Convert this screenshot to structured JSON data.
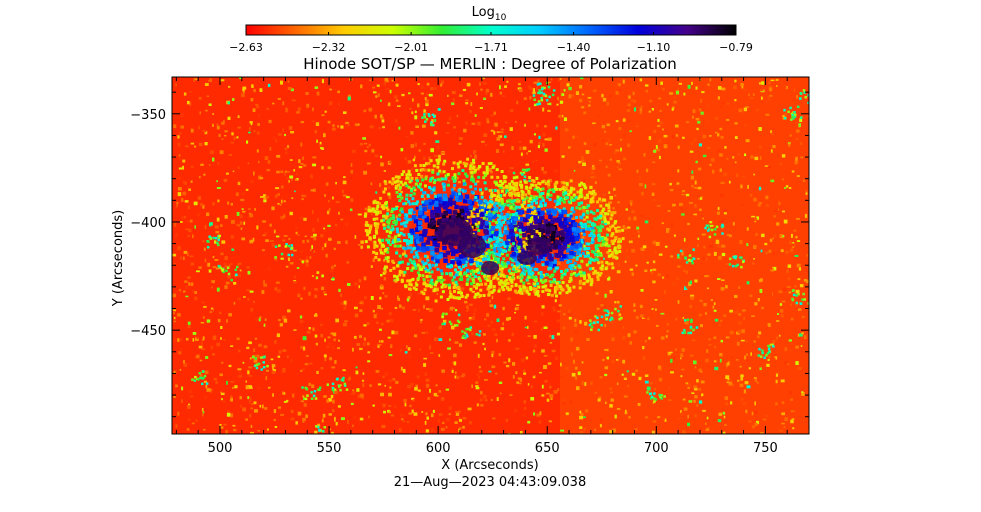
{
  "chart_data": {
    "type": "heatmap",
    "title": "Hinode SOT/SP — MERLIN : Degree of Polarization",
    "xlabel": "X (Arcseconds)",
    "ylabel": "Y (Arcseconds)",
    "timestamp": "21—Aug—2023 04:43:09.038",
    "xlim": [
      478,
      770
    ],
    "ylim": [
      -498,
      -333
    ],
    "xticks": [
      "500",
      "550",
      "600",
      "650",
      "700",
      "750"
    ],
    "yticks": [
      "−350",
      "−400",
      "−450"
    ],
    "xtick_values": [
      500,
      550,
      600,
      650,
      700,
      750
    ],
    "ytick_values": [
      -350,
      -400,
      -450
    ],
    "grid": false,
    "colorbar": {
      "label_base": "Log",
      "label_sub": "10",
      "range": [
        -2.63,
        -0.79
      ],
      "ticks": [
        "−2.63",
        "−2.32",
        "−2.01",
        "−1.71",
        "−1.40",
        "−1.10",
        "−0.79"
      ],
      "tick_values": [
        -2.63,
        -2.32,
        -2.01,
        -1.71,
        -1.4,
        -1.1,
        -0.79
      ],
      "colormap": [
        "#ff0000",
        "#ff6600",
        "#ffcc00",
        "#ccff00",
        "#33ee33",
        "#00ffcc",
        "#00ccff",
        "#0066ff",
        "#0000dd",
        "#44008a",
        "#000000"
      ]
    },
    "features": [
      {
        "name": "sunspot umbra",
        "x": 607,
        "y": -403,
        "log_dop": -0.9
      },
      {
        "name": "sunspot umbra",
        "x": 648,
        "y": -407,
        "log_dop": -0.95
      }
    ]
  }
}
